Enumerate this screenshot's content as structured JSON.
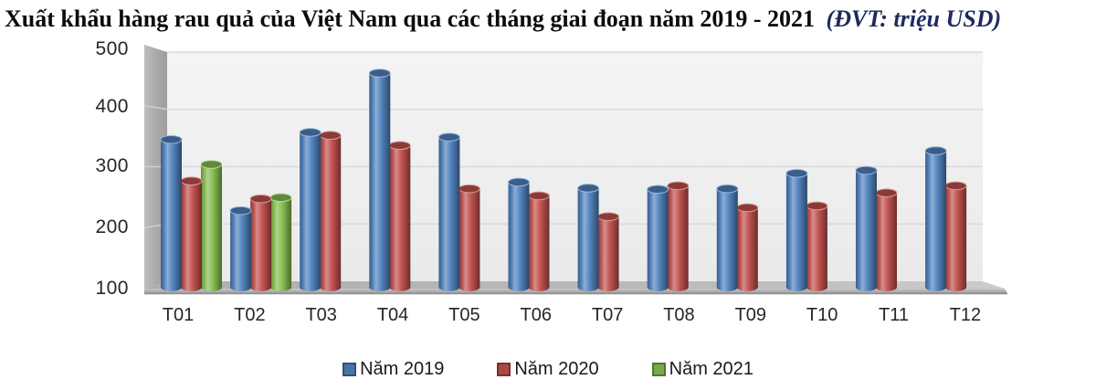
{
  "title": {
    "main": "Xuất khẩu hàng rau quả của Việt Nam qua các tháng giai đoạn năm 2019 - 2021",
    "unit_note": "(ĐVT: triệu USD)"
  },
  "chart_data": {
    "type": "bar",
    "subtype": "3d-cylinder",
    "title": "Xuất khẩu hàng rau quả của Việt Nam qua các tháng giai đoạn năm 2019 - 2021",
    "unit": "triệu USD",
    "categories": [
      "T01",
      "T02",
      "T03",
      "T04",
      "T05",
      "T06",
      "T07",
      "T08",
      "T09",
      "T10",
      "T11",
      "T12"
    ],
    "series": [
      {
        "name": "Năm 2019",
        "color": "#4f81bd",
        "values": [
          350,
          230,
          362,
          462,
          354,
          278,
          268,
          266,
          267,
          293,
          298,
          331
        ]
      },
      {
        "name": "Năm 2020",
        "color": "#c0504d",
        "values": [
          280,
          250,
          357,
          340,
          267,
          255,
          220,
          272,
          235,
          238,
          260,
          272
        ]
      },
      {
        "name": "Năm 2021",
        "color": "#84bd4f",
        "values": [
          308,
          252,
          null,
          null,
          null,
          null,
          null,
          null,
          null,
          null,
          null,
          null
        ]
      }
    ],
    "xlabel": "",
    "ylabel": "",
    "ylim": [
      100,
      500
    ],
    "yticks": [
      100,
      200,
      300,
      400,
      500
    ],
    "grid": true,
    "legend_position": "bottom",
    "wall_color": "#f0f0f0",
    "gridline_color": "#d9d9d9",
    "floor_color": "#b3b3b3"
  }
}
